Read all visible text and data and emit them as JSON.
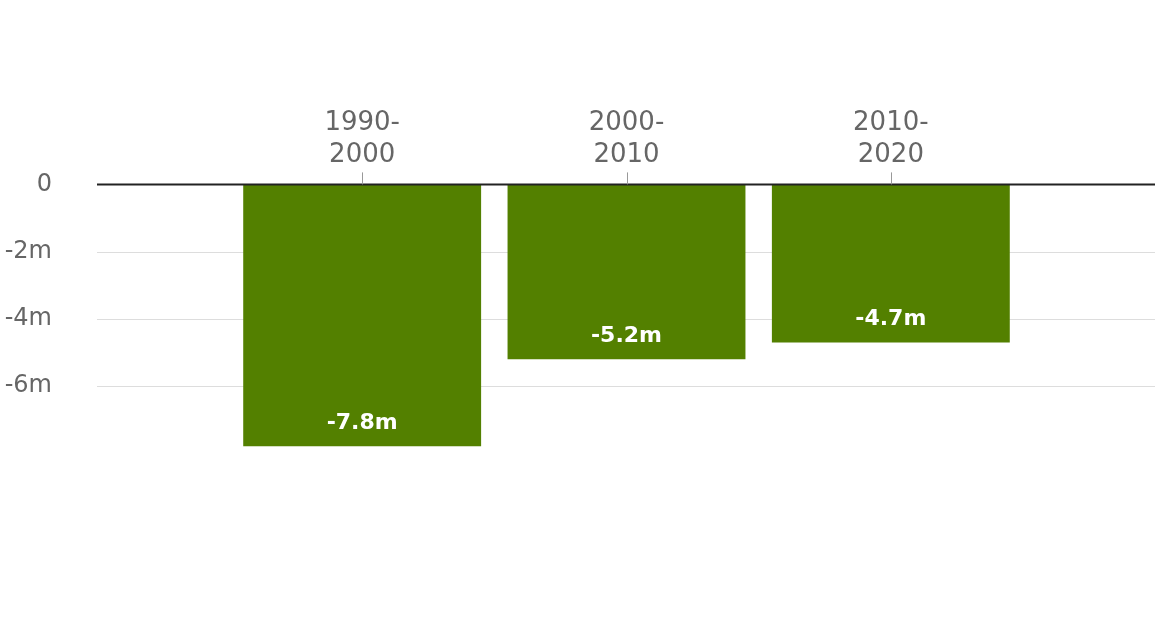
{
  "chart_data": {
    "type": "bar",
    "categories": [
      "1990-2000",
      "2000-2010",
      "2010-2020"
    ],
    "values": [
      -7.8,
      -5.2,
      -4.7
    ],
    "color": "#538000",
    "value_labels": [
      "-7.8m",
      "-5.2m",
      "-4.7m"
    ],
    "ylim": [
      -7.8,
      0
    ],
    "yticks": [
      {
        "value": -6,
        "label": "-6m"
      },
      {
        "value": -4,
        "label": "-4m"
      },
      {
        "value": -2,
        "label": "-2m"
      },
      0
    ],
    "grid": "y",
    "legend": false
  }
}
